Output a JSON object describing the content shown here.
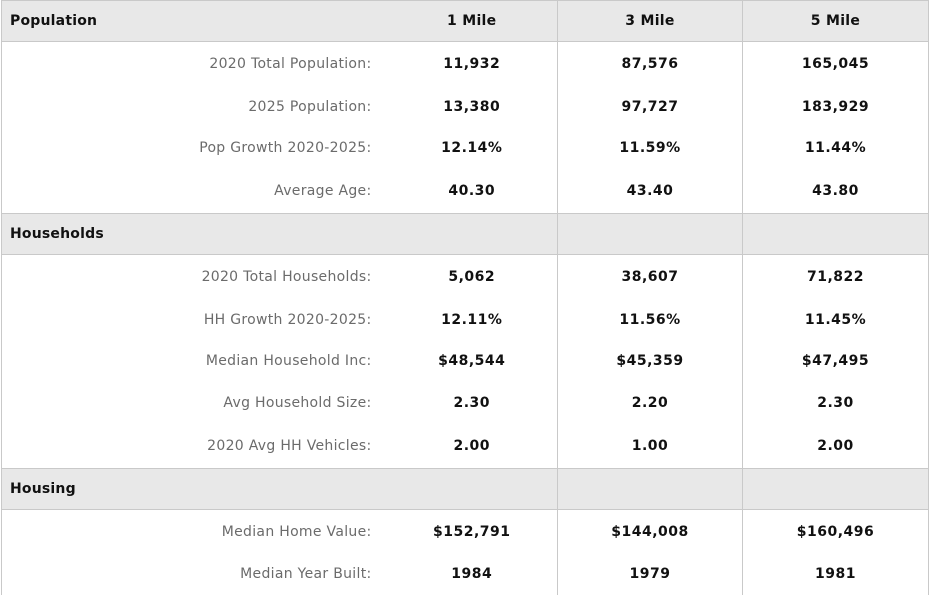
{
  "columns": [
    "1 Mile",
    "3 Mile",
    "5 Mile"
  ],
  "sections": [
    {
      "title": "Population",
      "rows": [
        {
          "label": "2020 Total Population:",
          "values": [
            "11,932",
            "87,576",
            "165,045"
          ]
        },
        {
          "label": "2025 Population:",
          "values": [
            "13,380",
            "97,727",
            "183,929"
          ]
        },
        {
          "label": "Pop Growth 2020-2025:",
          "values": [
            "12.14%",
            "11.59%",
            "11.44%"
          ]
        },
        {
          "label": "Average Age:",
          "values": [
            "40.30",
            "43.40",
            "43.80"
          ]
        }
      ]
    },
    {
      "title": "Households",
      "rows": [
        {
          "label": "2020 Total Households:",
          "values": [
            "5,062",
            "38,607",
            "71,822"
          ]
        },
        {
          "label": "HH Growth 2020-2025:",
          "values": [
            "12.11%",
            "11.56%",
            "11.45%"
          ]
        },
        {
          "label": "Median Household Inc:",
          "values": [
            "$48,544",
            "$45,359",
            "$47,495"
          ]
        },
        {
          "label": "Avg Household Size:",
          "values": [
            "2.30",
            "2.20",
            "2.30"
          ]
        },
        {
          "label": "2020 Avg HH Vehicles:",
          "values": [
            "2.00",
            "1.00",
            "2.00"
          ]
        }
      ]
    },
    {
      "title": "Housing",
      "rows": [
        {
          "label": "Median Home Value:",
          "values": [
            "$152,791",
            "$144,008",
            "$160,496"
          ]
        },
        {
          "label": "Median Year Built:",
          "values": [
            "1984",
            "1979",
            "1981"
          ]
        }
      ]
    }
  ]
}
